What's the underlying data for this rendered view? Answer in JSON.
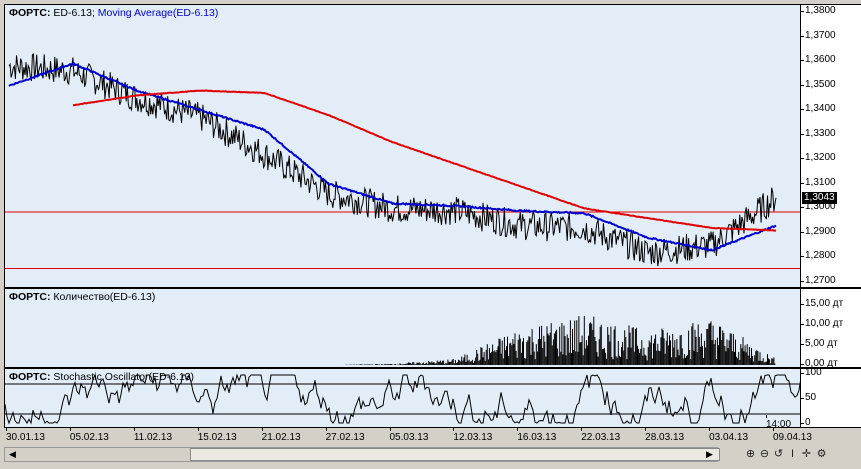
{
  "price_panel": {
    "title_prefix": "ФОРТС:",
    "title_main": "ED-6.13;",
    "title_ma": "Moving Average(ED-6.13)",
    "ticks": [
      "1,3800",
      "1,3700",
      "1,3600",
      "1,3500",
      "1,3400",
      "1,3300",
      "1,3200",
      "1,3100",
      "1,3000",
      "1,2900",
      "1,2800",
      "1,2700"
    ],
    "last_price": "1,3043"
  },
  "volume_panel": {
    "title_prefix": "ФОРТС:",
    "title_main": "Количество(ED-6.13)",
    "ticks": [
      "15,00 дт",
      "10,00 дт",
      "5,00 дт",
      "0,00 дт"
    ]
  },
  "stoch_panel": {
    "title_prefix": "ФОРТС:",
    "title_main": "Stochastic Oscillator(ED-6.13)",
    "ticks": [
      "100",
      "50",
      "0"
    ]
  },
  "x_axis": {
    "labels": [
      "30.01.13",
      "05.02.13",
      "11.02.13",
      "15.02.13",
      "21.02.13",
      "27.02.13",
      "05.03.13",
      "12.03.13",
      "16.03.13",
      "22.03.13",
      "28.03.13",
      "03.04.13",
      "09.04.13"
    ],
    "time_label": "14:00"
  },
  "toolbar": {
    "icons": [
      "zoom-in-icon",
      "zoom-out-icon",
      "restore-icon",
      "cursor-icon",
      "crosshair-icon",
      "settings-icon"
    ]
  },
  "colors": {
    "price": "#000000",
    "ma_short": "#0000cc",
    "ma_long": "#e00000",
    "levels": "#e00000",
    "panel_bg": "#e3edf8"
  },
  "chart_data": [
    {
      "type": "line",
      "title": "ФОРТС: ED-6.13; Moving Average(ED-6.13)",
      "x": [
        "30.01.13",
        "05.02.13",
        "11.02.13",
        "15.02.13",
        "21.02.13",
        "27.02.13",
        "05.03.13",
        "12.03.13",
        "16.03.13",
        "22.03.13",
        "28.03.13",
        "03.04.13",
        "09.04.13"
      ],
      "ylim": [
        1.27,
        1.38
      ],
      "series": [
        {
          "name": "ED-6.13",
          "values": [
            1.358,
            1.356,
            1.345,
            1.337,
            1.322,
            1.306,
            1.3,
            1.299,
            1.293,
            1.292,
            1.282,
            1.285,
            1.3043
          ]
        },
        {
          "name": "Moving Average(ED-6.13)",
          "values": [
            1.35,
            1.359,
            1.348,
            1.34,
            1.332,
            1.31,
            1.302,
            1.301,
            1.299,
            1.298,
            1.288,
            1.283,
            1.293
          ]
        },
        {
          "name": "Moving Average(ED-6.13)",
          "values": [
            null,
            1.342,
            1.346,
            1.348,
            1.347,
            1.338,
            1.327,
            1.318,
            1.309,
            1.3,
            1.296,
            1.292,
            1.291
          ]
        }
      ],
      "hlines": [
        1.2985,
        1.2755
      ]
    },
    {
      "type": "bar",
      "title": "ФОРТС: Количество(ED-6.13)",
      "x": [
        "30.01.13",
        "05.02.13",
        "11.02.13",
        "15.02.13",
        "21.02.13",
        "27.02.13",
        "05.03.13",
        "12.03.13",
        "16.03.13",
        "22.03.13",
        "28.03.13",
        "03.04.13",
        "09.04.13"
      ],
      "values": [
        0,
        0,
        0,
        0,
        0,
        0,
        0.2,
        1.0,
        6.0,
        8.0,
        5.5,
        7.5,
        1.0
      ],
      "ylim": [
        0,
        17
      ]
    },
    {
      "type": "line",
      "title": "ФОРТС: Stochastic Oscillator(ED-6.13)",
      "x": [
        "30.01.13",
        "05.02.13",
        "11.02.13",
        "15.02.13",
        "21.02.13",
        "27.02.13",
        "05.03.13",
        "12.03.13",
        "16.03.13",
        "22.03.13",
        "28.03.13",
        "03.04.13",
        "09.04.13"
      ],
      "ylim": [
        0,
        100
      ],
      "levels": [
        80,
        20
      ]
    }
  ]
}
